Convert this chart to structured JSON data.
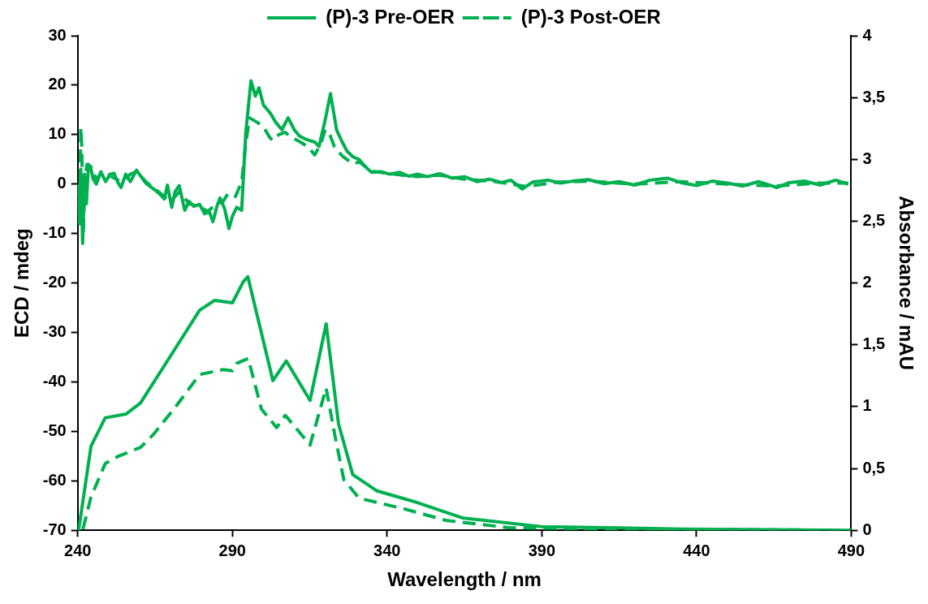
{
  "chart_data": {
    "type": "line",
    "xlabel": "Wavelength / nm",
    "ylabel": "ECD / mdeg",
    "y2label": "Absorbance / mAU",
    "xlim": [
      240,
      490
    ],
    "xticks": [
      240,
      290,
      340,
      390,
      440,
      490
    ],
    "ylim": [
      -70,
      30
    ],
    "yticks": [
      -70,
      -60,
      -50,
      -40,
      -30,
      -20,
      -10,
      0,
      10,
      20,
      30
    ],
    "y2lim": [
      0,
      4
    ],
    "y2ticks": [
      0,
      {
        "value": 0.5,
        "label": "0,5"
      },
      1,
      {
        "value": 1.5,
        "label": "1,5"
      },
      2,
      {
        "value": 2.5,
        "label": "2,5"
      },
      3,
      {
        "value": 3.5,
        "label": "3,5"
      },
      4
    ],
    "legend": "top",
    "marker": "none",
    "series": [
      {
        "name": "(P)-3 Pre-OER",
        "color": "#00b050",
        "line_style": "solid",
        "x": [
          240,
          240.6,
          241,
          241.6,
          242.2,
          242.8,
          243.5,
          244.3,
          245,
          246,
          247.5,
          249,
          250.5,
          251.7,
          253,
          254,
          255.5,
          257,
          259,
          260.5,
          262,
          263.5,
          265,
          266.5,
          268,
          269,
          270.4,
          271.5,
          272.8,
          274.6,
          276,
          277.5,
          279.4,
          281,
          282.5,
          283.7,
          285,
          286,
          287.5,
          288.9,
          290,
          291.4,
          293,
          294.3,
          296,
          297.4,
          298.6,
          300,
          302.3,
          304,
          306,
          308,
          310,
          311.7,
          314,
          316.6,
          318,
          320,
          321.7,
          323.7,
          325.5,
          327,
          329,
          330.9,
          333,
          335,
          338,
          341,
          344,
          347,
          350,
          353,
          357,
          361,
          365,
          369,
          373,
          377,
          380,
          383.7,
          387,
          392,
          396,
          400,
          405,
          410,
          415,
          420,
          425,
          430.6,
          435,
          440,
          445,
          450,
          455,
          460,
          466,
          470,
          475,
          480,
          485,
          489
        ],
        "values": [
          0,
          -8,
          3,
          -12,
          2,
          -4,
          4,
          3,
          1,
          0,
          2.5,
          0.5,
          2,
          2.2,
          0.3,
          -0.7,
          2,
          0.5,
          2.8,
          1.5,
          0.2,
          -0.5,
          -1.2,
          -2,
          -3,
          -0.2,
          -4.7,
          -1.5,
          -0.3,
          -5.3,
          -3.5,
          -4.5,
          -4.1,
          -6,
          -5.5,
          -7.6,
          -4.5,
          -2.8,
          -5,
          -9,
          -6.5,
          -4.7,
          -5.3,
          10.2,
          20.9,
          17.8,
          19.5,
          16,
          14.3,
          12.5,
          11,
          13.4,
          11,
          9.7,
          9,
          8.5,
          7.6,
          13,
          18.3,
          10.9,
          8.5,
          6.7,
          5.5,
          5,
          3.5,
          2.4,
          2.5,
          2,
          2.4,
          1.6,
          2,
          1.5,
          2.1,
          1.2,
          1.5,
          0.5,
          1,
          0.3,
          0.8,
          -1,
          0.4,
          0.8,
          0.2,
          0.6,
          0.9,
          0.1,
          0.5,
          -0.2,
          0.8,
          1.2,
          0.3,
          -0.3,
          0.6,
          0.2,
          -0.4,
          0.5,
          -0.7,
          0.3,
          0.6,
          -0.2,
          0.8,
          0
        ]
      },
      {
        "name": "(P)-3 Post-OER",
        "color": "#00b050",
        "line_style": "dashed",
        "x": [
          240,
          240.6,
          241,
          241.3,
          241.8,
          242.4,
          243,
          244.3,
          246,
          248,
          251,
          254,
          257,
          259,
          262,
          265,
          268,
          270,
          273,
          276,
          279,
          282,
          285,
          287,
          288.6,
          291,
          293,
          294.3,
          295.5,
          298,
          300,
          302,
          303,
          305,
          307,
          309,
          312,
          314.5,
          316.6,
          318.5,
          320,
          321.5,
          323,
          325.5,
          327,
          329,
          331,
          335,
          340,
          345,
          350,
          357,
          365,
          375,
          385,
          395,
          405,
          420,
          435,
          450,
          465,
          480,
          489
        ],
        "values": [
          0,
          -6,
          11.4,
          8,
          -10,
          1,
          4,
          3.5,
          1,
          2.5,
          1.5,
          0.5,
          2,
          2.5,
          0.5,
          -1,
          -2.5,
          -3.5,
          -1.5,
          -4,
          -4.5,
          -5.5,
          -4,
          -3.5,
          -1.9,
          -2.5,
          0.5,
          8,
          13.4,
          12.5,
          11.6,
          9.5,
          8.8,
          10,
          10.5,
          9.5,
          8.5,
          7.5,
          5.9,
          8,
          11,
          10,
          7.5,
          5.7,
          5,
          4.1,
          4.5,
          2.6,
          2.2,
          1.8,
          1.5,
          1.8,
          1,
          0.5,
          -0.5,
          0.4,
          0.6,
          0,
          0.5,
          0,
          -0.4,
          0.2,
          0.2
        ]
      },
      {
        "color": "#00b050",
        "line_style": "solid",
        "axis": "y2",
        "x": [
          240.3,
          244.3,
          248.9,
          255.6,
          260.3,
          270,
          279.4,
          284.3,
          290,
          293.5,
          295,
          303.1,
          307.4,
          315.1,
          320.3,
          324.3,
          328.9,
          333.7,
          336.6,
          349,
          364.3,
          389.7,
          435.7,
          490
        ],
        "values": [
          0,
          0.68,
          0.91,
          0.94,
          1.03,
          1.41,
          1.78,
          1.86,
          1.84,
          2.01,
          2.05,
          1.21,
          1.37,
          1.05,
          1.67,
          0.86,
          0.45,
          0.37,
          0.32,
          0.23,
          0.1,
          0.03,
          0.01,
          0
        ]
      },
      {
        "color": "#00b050",
        "line_style": "dashed",
        "axis": "y2",
        "x": [
          241.7,
          244.3,
          248.9,
          253.2,
          260.3,
          264.3,
          271.7,
          279.4,
          287.1,
          290,
          291.4,
          295.1,
          299.4,
          304.3,
          307.1,
          315.1,
          318.6,
          320.3,
          323.1,
          326,
          330.9,
          346,
          359,
          379.7,
          420,
          490
        ],
        "values": [
          0.01,
          0.27,
          0.54,
          0.6,
          0.67,
          0.77,
          1,
          1.26,
          1.3,
          1.29,
          1.35,
          1.39,
          0.98,
          0.83,
          0.93,
          0.69,
          1,
          1.15,
          0.77,
          0.41,
          0.26,
          0.17,
          0.08,
          0.02,
          0.01,
          0
        ]
      }
    ]
  }
}
